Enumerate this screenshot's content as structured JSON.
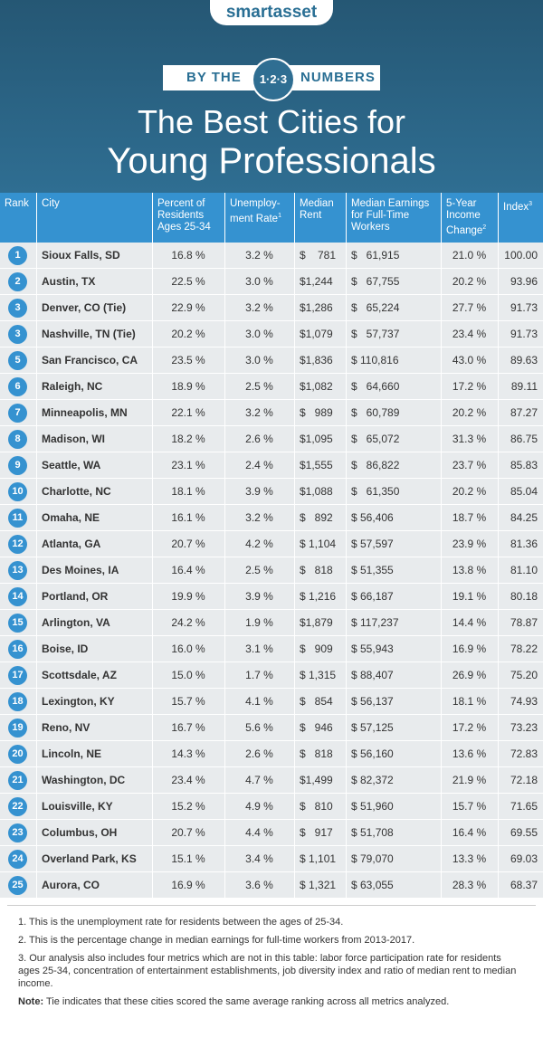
{
  "header": {
    "logo": "smartasset",
    "banner": {
      "left": "BY THE",
      "badge": "1·2·3",
      "right": "NUMBERS"
    },
    "title_lines": [
      "The Best Cities for",
      "Young Professionals"
    ]
  },
  "table": {
    "columns": [
      {
        "lines": [
          "Rank"
        ]
      },
      {
        "lines": [
          "City"
        ]
      },
      {
        "lines": [
          "Percent of",
          "Residents",
          "Ages 25-34"
        ]
      },
      {
        "lines": [
          "Unemploy-",
          "ment Rate"
        ],
        "note": "1"
      },
      {
        "lines": [
          "Median",
          "Rent"
        ]
      },
      {
        "lines": [
          "Median Earnings",
          "for Full-Time",
          "Workers"
        ]
      },
      {
        "lines": [
          "5-Year",
          "Income",
          "Change"
        ],
        "note": "2"
      },
      {
        "lines": [
          "Index"
        ],
        "note": "3"
      }
    ],
    "rows": [
      [
        1,
        "Sioux Falls, SD",
        "16.8 %",
        "3.2 %",
        "$    781",
        "$   61,915",
        "21.0 %",
        "100.00"
      ],
      [
        2,
        "Austin, TX",
        "22.5 %",
        "3.0 %",
        "$1,244",
        "$   67,755",
        "20.2 %",
        "93.96"
      ],
      [
        3,
        "Denver, CO (Tie)",
        "22.9 %",
        "3.2 %",
        "$1,286",
        "$   65,224",
        "27.7 %",
        "91.73"
      ],
      [
        3,
        "Nashville, TN (Tie)",
        "20.2 %",
        "3.0 %",
        "$1,079",
        "$   57,737",
        "23.4 %",
        "91.73"
      ],
      [
        5,
        "San Francisco, CA",
        "23.5 %",
        "3.0 %",
        "$1,836",
        "$ 110,816",
        "43.0 %",
        "89.63"
      ],
      [
        6,
        "Raleigh, NC",
        "18.9 %",
        "2.5 %",
        "$1,082",
        "$   64,660",
        "17.2 %",
        "89.11"
      ],
      [
        7,
        "Minneapolis, MN",
        "22.1 %",
        "3.2 %",
        "$   989",
        "$   60,789",
        "20.2 %",
        "87.27"
      ],
      [
        8,
        "Madison, WI",
        "18.2 %",
        "2.6 %",
        "$1,095",
        "$   65,072",
        "31.3 %",
        "86.75"
      ],
      [
        9,
        "Seattle, WA",
        "23.1 %",
        "2.4 %",
        "$1,555",
        "$   86,822",
        "23.7 %",
        "85.83"
      ],
      [
        10,
        "Charlotte, NC",
        "18.1 %",
        "3.9 %",
        "$1,088",
        "$   61,350",
        "20.2 %",
        "85.04"
      ],
      [
        11,
        "Omaha, NE",
        "16.1 %",
        "3.2 %",
        "$   892",
        "$ 56,406",
        "18.7 %",
        "84.25"
      ],
      [
        12,
        "Atlanta, GA",
        "20.7 %",
        "4.2 %",
        "$ 1,104",
        "$ 57,597",
        "23.9 %",
        "81.36"
      ],
      [
        13,
        "Des Moines, IA",
        "16.4 %",
        "2.5 %",
        "$   818",
        "$ 51,355",
        "13.8 %",
        "81.10"
      ],
      [
        14,
        "Portland, OR",
        "19.9 %",
        "3.9 %",
        "$ 1,216",
        "$ 66,187",
        "19.1 %",
        "80.18"
      ],
      [
        15,
        "Arlington, VA",
        "24.2 %",
        "1.9 %",
        "$1,879",
        "$ 117,237",
        "14.4 %",
        "78.87"
      ],
      [
        16,
        "Boise, ID",
        "16.0 %",
        "3.1 %",
        "$   909",
        "$ 55,943",
        "16.9 %",
        "78.22"
      ],
      [
        17,
        "Scottsdale, AZ",
        "15.0 %",
        "1.7 %",
        "$ 1,315",
        "$ 88,407",
        "26.9 %",
        "75.20"
      ],
      [
        18,
        "Lexington, KY",
        "15.7 %",
        "4.1 %",
        "$   854",
        "$ 56,137",
        "18.1 %",
        "74.93"
      ],
      [
        19,
        "Reno, NV",
        "16.7 %",
        "5.6 %",
        "$   946",
        "$ 57,125",
        "17.2 %",
        "73.23"
      ],
      [
        20,
        "Lincoln, NE",
        "14.3 %",
        "2.6 %",
        "$   818",
        "$ 56,160",
        "13.6 %",
        "72.83"
      ],
      [
        21,
        "Washington, DC",
        "23.4 %",
        "4.7 %",
        "$1,499",
        "$ 82,372",
        "21.9 %",
        "72.18"
      ],
      [
        22,
        "Louisville, KY",
        "15.2 %",
        "4.9 %",
        "$   810",
        "$ 51,960",
        "15.7 %",
        "71.65"
      ],
      [
        23,
        "Columbus, OH",
        "20.7 %",
        "4.4 %",
        "$   917",
        "$ 51,708",
        "16.4 %",
        "69.55"
      ],
      [
        24,
        "Overland Park, KS",
        "15.1 %",
        "3.4 %",
        "$ 1,101",
        "$ 79,070",
        "13.3 %",
        "69.03"
      ],
      [
        25,
        "Aurora, CO",
        "16.9 %",
        "3.6 %",
        "$ 1,321",
        "$ 63,055",
        "28.3 %",
        "68.37"
      ]
    ]
  },
  "footnotes": [
    {
      "marker": "1.",
      "text": "This is the unemployment rate for residents between the ages of 25-34."
    },
    {
      "marker": "2.",
      "text": "This is the percentage change in median earnings for full-time workers from 2013-2017."
    },
    {
      "marker": "3.",
      "text": "Our analysis also includes four metrics which are not in this table: labor force participation rate for residents ages 25-34, concentration of entertainment establishments, job diversity index and ratio of median rent to median income."
    }
  ],
  "note": {
    "label": "Note:",
    "text": "Tie indicates that these cities scored the same average ranking across all metrics analyzed."
  }
}
